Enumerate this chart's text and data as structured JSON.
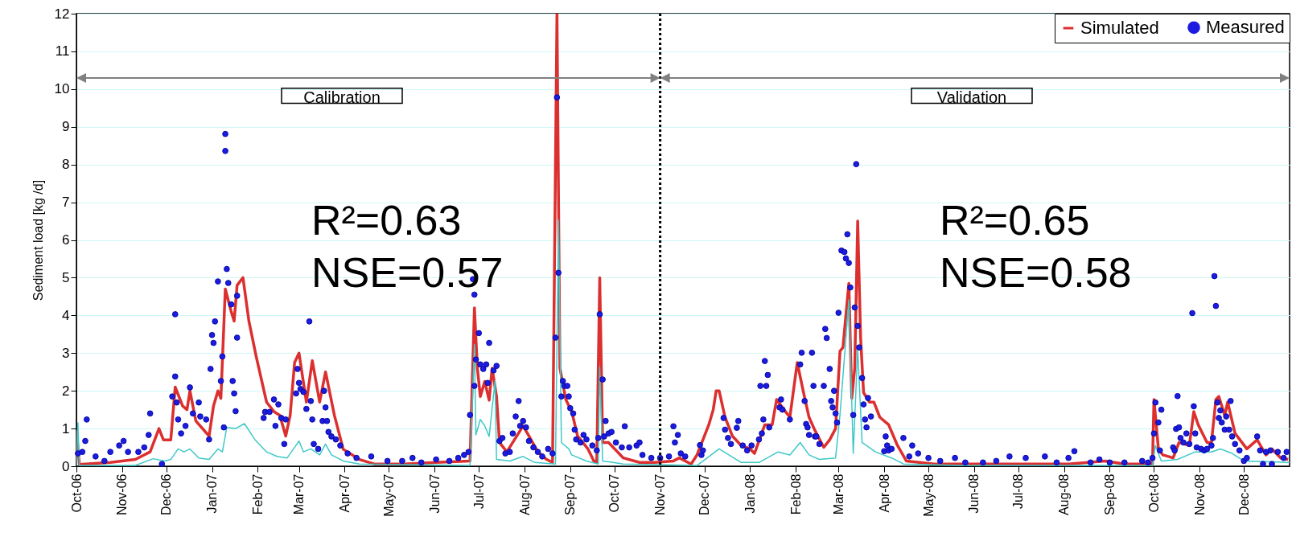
{
  "chart_data": {
    "type": "line",
    "ylabel": "Sediment load [kg /d]",
    "legend": "top right",
    "grid": "y",
    "xlim": [
      "2006-10-01",
      "2009-01-01"
    ],
    "ylim": [
      0,
      12
    ],
    "yticks": [
      0,
      1,
      2,
      3,
      4,
      5,
      6,
      7,
      8,
      9,
      10,
      11,
      12
    ],
    "xticks": [
      {
        "value": "2006-10-01",
        "label": "Oct-06"
      },
      {
        "value": "2006-11-01",
        "label": "Nov-06"
      },
      {
        "value": "2006-12-01",
        "label": "Dec-06"
      },
      {
        "value": "2007-01-01",
        "label": "Jan-07"
      },
      {
        "value": "2007-02-01",
        "label": "Feb-07"
      },
      {
        "value": "2007-03-01",
        "label": "Mar-07"
      },
      {
        "value": "2007-04-01",
        "label": "Apr-07"
      },
      {
        "value": "2007-05-01",
        "label": "May-07"
      },
      {
        "value": "2007-06-01",
        "label": "Jun-07"
      },
      {
        "value": "2007-07-01",
        "label": "Jul-07"
      },
      {
        "value": "2007-08-01",
        "label": "Aug-07"
      },
      {
        "value": "2007-09-01",
        "label": "Sep-07"
      },
      {
        "value": "2007-10-01",
        "label": "Oct-07"
      },
      {
        "value": "2007-11-01",
        "label": "Nov-07"
      },
      {
        "value": "2007-12-01",
        "label": "Dec-07"
      },
      {
        "value": "2008-01-01",
        "label": "Jan-08"
      },
      {
        "value": "2008-02-01",
        "label": "Feb-08"
      },
      {
        "value": "2008-03-01",
        "label": "Mar-08"
      },
      {
        "value": "2008-04-01",
        "label": "Apr-08"
      },
      {
        "value": "2008-05-01",
        "label": "May-08"
      },
      {
        "value": "2008-06-01",
        "label": "Jun-08"
      },
      {
        "value": "2008-07-01",
        "label": "Jul-08"
      },
      {
        "value": "2008-08-01",
        "label": "Aug-08"
      },
      {
        "value": "2008-09-01",
        "label": "Sep-08"
      },
      {
        "value": "2008-10-01",
        "label": "Oct-08"
      },
      {
        "value": "2008-11-01",
        "label": "Nov-08"
      },
      {
        "value": "2008-12-01",
        "label": "Dec-08"
      }
    ],
    "annotations": [
      "Calibration",
      "Validation",
      "R²=0.63",
      "NSE=0.57",
      "R²=0.65",
      "NSE=0.58"
    ],
    "ref_lines": [
      {
        "axis": "x",
        "value": "2007-11-01",
        "line_style": "dotted",
        "color": "#000000"
      }
    ],
    "series": [
      {
        "name": "Simulated",
        "type": "line",
        "color": "#dc2f2f",
        "x": [
          "2006-10-01",
          "2006-10-03",
          "2006-10-24",
          "2006-11-10",
          "2006-11-20",
          "2006-11-26",
          "2006-11-29",
          "2006-12-04",
          "2006-12-07",
          "2006-12-12",
          "2006-12-15",
          "2006-12-17",
          "2006-12-21",
          "2006-12-30",
          "2007-01-02",
          "2007-01-05",
          "2007-01-07",
          "2007-01-10",
          "2007-01-14",
          "2007-01-16",
          "2007-01-18",
          "2007-01-22",
          "2007-01-26",
          "2007-01-31",
          "2007-02-07",
          "2007-02-12",
          "2007-02-16",
          "2007-02-20",
          "2007-02-23",
          "2007-02-26",
          "2007-03-01",
          "2007-03-06",
          "2007-03-10",
          "2007-03-15",
          "2007-03-19",
          "2007-03-25",
          "2007-03-31",
          "2007-04-11",
          "2007-04-21",
          "2007-05-12",
          "2007-06-02",
          "2007-06-25",
          "2007-06-28",
          "2007-06-30",
          "2007-07-02",
          "2007-07-05",
          "2007-07-08",
          "2007-07-10",
          "2007-07-13",
          "2007-07-15",
          "2007-07-20",
          "2007-07-24",
          "2007-07-31",
          "2007-08-04",
          "2007-08-10",
          "2007-08-16",
          "2007-08-20",
          "2007-08-23",
          "2007-08-25",
          "2007-08-29",
          "2007-09-02",
          "2007-09-06",
          "2007-09-13",
          "2007-09-17",
          "2007-09-19",
          "2007-09-21",
          "2007-09-23",
          "2007-09-27",
          "2007-10-07",
          "2007-10-18",
          "2007-10-28",
          "2007-11-10",
          "2007-11-14",
          "2007-11-22",
          "2007-11-26",
          "2007-12-04",
          "2007-12-07",
          "2007-12-09",
          "2007-12-11",
          "2007-12-15",
          "2007-12-20",
          "2007-12-26",
          "2008-01-01",
          "2008-01-04",
          "2008-01-11",
          "2008-01-16",
          "2008-01-19",
          "2008-01-24",
          "2008-01-28",
          "2008-02-02",
          "2008-02-06",
          "2008-02-10",
          "2008-02-14",
          "2008-02-20",
          "2008-02-24",
          "2008-02-28",
          "2008-03-02",
          "2008-03-04",
          "2008-03-08",
          "2008-03-10",
          "2008-03-12",
          "2008-03-14",
          "2008-03-16",
          "2008-03-18",
          "2008-03-22",
          "2008-03-25",
          "2008-03-29",
          "2008-04-04",
          "2008-04-10",
          "2008-04-16",
          "2008-05-05",
          "2008-06-16",
          "2008-08-04",
          "2008-08-29",
          "2008-09-11",
          "2008-09-30",
          "2008-10-01",
          "2008-10-04",
          "2008-10-07",
          "2008-10-14",
          "2008-10-18",
          "2008-10-25",
          "2008-10-28",
          "2008-10-31",
          "2008-11-06",
          "2008-11-09",
          "2008-11-12",
          "2008-11-14",
          "2008-11-18",
          "2008-11-20",
          "2008-11-25",
          "2008-12-03",
          "2008-12-10",
          "2008-12-16",
          "2008-12-20",
          "2008-12-26",
          "2008-12-31"
        ],
        "values": [
          0.95,
          0.05,
          0.1,
          0.18,
          0.38,
          1.0,
          0.7,
          0.7,
          2.1,
          1.6,
          1.5,
          2.0,
          1.2,
          0.8,
          1.6,
          2.0,
          1.8,
          4.7,
          4.1,
          3.85,
          4.8,
          5.0,
          3.85,
          2.9,
          1.7,
          1.45,
          1.35,
          0.8,
          1.35,
          2.75,
          3.0,
          1.7,
          2.8,
          1.7,
          2.5,
          1.35,
          0.45,
          0.18,
          0.06,
          0.06,
          0.1,
          0.14,
          4.2,
          2.6,
          1.85,
          2.25,
          1.75,
          2.6,
          1.85,
          0.63,
          0.38,
          0.63,
          1.07,
          0.8,
          0.38,
          0.18,
          0.1,
          12,
          2.6,
          1.77,
          1.45,
          0.8,
          0.46,
          0.14,
          0.1,
          5.0,
          0.63,
          0.63,
          0.22,
          0.1,
          0.1,
          0.14,
          0.22,
          0.06,
          0.3,
          1.1,
          1.5,
          2.0,
          2.0,
          1.3,
          0.8,
          0.55,
          0.46,
          0.34,
          1.1,
          1.1,
          1.77,
          1.5,
          1.3,
          2.75,
          2.0,
          1.3,
          0.95,
          0.5,
          0.7,
          1.0,
          3.05,
          3.15,
          4.85,
          1.8,
          2.6,
          6.5,
          3.4,
          1.95,
          1.7,
          1.7,
          1.3,
          1.1,
          0.55,
          0.14,
          0.06,
          0.06,
          0.06,
          0.14,
          0.06,
          0.06,
          1.77,
          0.46,
          0.3,
          0.22,
          0.63,
          0.55,
          1.45,
          1.1,
          0.63,
          0.63,
          1.77,
          1.85,
          1.35,
          1.7,
          0.87,
          0.46,
          0.7,
          0.3,
          0.46,
          0.22,
          0.18
        ]
      },
      {
        "type": "line",
        "color": "#40c8c8",
        "x": [
          "2006-10-01",
          "2006-10-02",
          "2006-10-03",
          "2006-11-10",
          "2006-11-22",
          "2006-11-30",
          "2006-12-04",
          "2006-12-09",
          "2006-12-13",
          "2006-12-17",
          "2006-12-23",
          "2006-12-30",
          "2007-01-05",
          "2007-01-08",
          "2007-01-11",
          "2007-01-17",
          "2007-01-23",
          "2007-01-30",
          "2007-02-07",
          "2007-02-14",
          "2007-02-21",
          "2007-03-01",
          "2007-03-04",
          "2007-03-09",
          "2007-03-15",
          "2007-03-19",
          "2007-03-23",
          "2007-03-31",
          "2007-04-11",
          "2007-06-25",
          "2007-06-28",
          "2007-06-29",
          "2007-07-02",
          "2007-07-05",
          "2007-07-08",
          "2007-07-12",
          "2007-07-13",
          "2007-07-22",
          "2007-07-31",
          "2007-08-08",
          "2007-08-22",
          "2007-08-24",
          "2007-08-26",
          "2007-08-31",
          "2007-09-02",
          "2007-09-12",
          "2007-09-20",
          "2007-09-21",
          "2007-09-23",
          "2007-10-07",
          "2007-11-26",
          "2007-12-11",
          "2007-12-26",
          "2008-01-07",
          "2008-01-20",
          "2008-01-28",
          "2008-02-04",
          "2008-02-10",
          "2008-02-17",
          "2008-02-28",
          "2008-03-02",
          "2008-03-08",
          "2008-03-11",
          "2008-03-14",
          "2008-03-17",
          "2008-03-26",
          "2008-04-06",
          "2008-04-14",
          "2008-05-23",
          "2008-09-30",
          "2008-10-02",
          "2008-10-06",
          "2008-10-17",
          "2008-10-29",
          "2008-11-09",
          "2008-11-15",
          "2008-11-23",
          "2008-12-01",
          "2009-01-01"
        ],
        "values": [
          0.02,
          1.15,
          0.02,
          0.02,
          0.2,
          0.14,
          0.18,
          0.46,
          0.38,
          0.46,
          0.22,
          0.18,
          0.46,
          0.38,
          1.03,
          1.0,
          1.13,
          0.71,
          0.38,
          0.26,
          0.22,
          0.67,
          0.38,
          0.46,
          0.3,
          0.59,
          0.3,
          0.14,
          0.06,
          0.02,
          3.23,
          0.83,
          1.24,
          1.07,
          0.79,
          2.26,
          0.18,
          0.14,
          0.26,
          0.1,
          0.06,
          6.53,
          0.63,
          0.46,
          0.3,
          0.14,
          0.06,
          2.62,
          0.14,
          0.06,
          0.02,
          0.46,
          0.1,
          0.1,
          0.38,
          0.3,
          0.63,
          0.3,
          0.18,
          0.22,
          1.36,
          4.41,
          0.34,
          3.11,
          0.63,
          0.38,
          0.22,
          0.06,
          0.02,
          0.02,
          0.55,
          0.14,
          0.18,
          0.38,
          0.38,
          0.46,
          0.34,
          0.14,
          0.1
        ]
      },
      {
        "name": "Measured",
        "type": "scatter",
        "marker": "circle",
        "color": "#1c1ce0",
        "x": [
          "2006-10-02",
          "2006-10-05",
          "2006-10-07",
          "2006-10-08",
          "2006-10-14",
          "2006-10-20",
          "2006-10-24",
          "2006-10-30",
          "2006-11-02",
          "2006-11-05",
          "2006-11-12",
          "2006-11-16",
          "2006-11-19",
          "2006-11-20",
          "2006-11-28",
          "2006-12-05",
          "2006-12-07",
          "2006-12-07",
          "2006-12-08",
          "2006-12-09",
          "2006-12-11",
          "2006-12-14",
          "2006-12-17",
          "2006-12-19",
          "2006-12-23",
          "2006-12-24",
          "2006-12-28",
          "2006-12-30",
          "2006-12-31",
          "2007-01-01",
          "2007-01-02",
          "2007-01-03",
          "2007-01-05",
          "2007-01-07",
          "2007-01-08",
          "2007-01-09",
          "2007-01-10",
          "2007-01-10",
          "2007-01-11",
          "2007-01-12",
          "2007-01-14",
          "2007-01-15",
          "2007-01-16",
          "2007-01-17",
          "2007-01-18",
          "2007-01-18",
          "2007-02-05",
          "2007-02-06",
          "2007-02-09",
          "2007-02-12",
          "2007-02-13",
          "2007-02-15",
          "2007-02-17",
          "2007-02-19",
          "2007-02-20",
          "2007-02-27",
          "2007-02-28",
          "2007-03-01",
          "2007-03-02",
          "2007-03-04",
          "2007-03-06",
          "2007-03-08",
          "2007-03-09",
          "2007-03-10",
          "2007-03-11",
          "2007-03-14",
          "2007-03-17",
          "2007-03-18",
          "2007-03-19",
          "2007-03-20",
          "2007-03-21",
          "2007-03-23",
          "2007-03-26",
          "2007-03-29",
          "2007-04-03",
          "2007-04-09",
          "2007-04-19",
          "2007-04-30",
          "2007-05-10",
          "2007-05-17",
          "2007-05-23",
          "2007-06-02",
          "2007-06-11",
          "2007-06-17",
          "2007-06-21",
          "2007-06-24",
          "2007-06-25",
          "2007-06-27",
          "2007-06-28",
          "2007-06-28",
          "2007-06-29",
          "2007-07-01",
          "2007-07-02",
          "2007-07-04",
          "2007-07-06",
          "2007-07-07",
          "2007-07-08",
          "2007-07-11",
          "2007-07-13",
          "2007-07-15",
          "2007-07-17",
          "2007-07-19",
          "2007-07-22",
          "2007-07-24",
          "2007-07-26",
          "2007-07-28",
          "2007-07-29",
          "2007-07-31",
          "2007-08-02",
          "2007-08-04",
          "2007-08-07",
          "2007-08-10",
          "2007-08-13",
          "2007-08-17",
          "2007-08-20",
          "2007-08-22",
          "2007-08-23",
          "2007-08-24",
          "2007-08-26",
          "2007-08-27",
          "2007-08-28",
          "2007-08-30",
          "2007-08-31",
          "2007-09-01",
          "2007-09-03",
          "2007-09-04",
          "2007-09-05",
          "2007-09-08",
          "2007-09-10",
          "2007-09-12",
          "2007-09-16",
          "2007-09-19",
          "2007-09-20",
          "2007-09-21",
          "2007-09-23",
          "2007-09-24",
          "2007-09-25",
          "2007-09-27",
          "2007-09-29",
          "2007-10-02",
          "2007-10-06",
          "2007-10-08",
          "2007-10-11",
          "2007-10-16",
          "2007-10-18",
          "2007-10-20",
          "2007-10-26",
          "2007-11-01",
          "2007-11-07",
          "2007-11-10",
          "2007-11-11",
          "2007-11-13",
          "2007-11-15",
          "2007-11-18",
          "2007-11-28",
          "2007-11-29",
          "2007-11-30",
          "2007-12-14",
          "2007-12-15",
          "2007-12-17",
          "2007-12-19",
          "2007-12-23",
          "2007-12-24",
          "2007-12-27",
          "2007-12-30",
          "2008-01-02",
          "2008-01-07",
          "2008-01-08",
          "2008-01-09",
          "2008-01-10",
          "2008-01-11",
          "2008-01-12",
          "2008-01-13",
          "2008-01-14",
          "2008-01-21",
          "2008-01-22",
          "2008-01-23",
          "2008-01-28",
          "2008-02-04",
          "2008-02-05",
          "2008-02-07",
          "2008-02-08",
          "2008-02-09",
          "2008-02-10",
          "2008-02-12",
          "2008-02-13",
          "2008-02-14",
          "2008-02-15",
          "2008-02-17",
          "2008-02-20",
          "2008-02-21",
          "2008-02-22",
          "2008-02-24",
          "2008-02-25",
          "2008-02-26",
          "2008-02-27",
          "2008-02-28",
          "2008-02-29",
          "2008-03-01",
          "2008-03-03",
          "2008-03-05",
          "2008-03-06",
          "2008-03-07",
          "2008-03-08",
          "2008-03-09",
          "2008-03-11",
          "2008-03-12",
          "2008-03-13",
          "2008-03-14",
          "2008-03-15",
          "2008-03-17",
          "2008-03-18",
          "2008-03-19",
          "2008-03-20",
          "2008-03-21",
          "2008-03-23",
          "2008-04-01",
          "2008-04-02",
          "2008-04-03",
          "2008-04-04",
          "2008-04-06",
          "2008-04-14",
          "2008-04-18",
          "2008-04-20",
          "2008-04-24",
          "2008-05-01",
          "2008-05-09",
          "2008-05-19",
          "2008-05-26",
          "2008-06-07",
          "2008-06-16",
          "2008-06-25",
          "2008-07-06",
          "2008-07-19",
          "2008-07-27",
          "2008-08-04",
          "2008-08-08",
          "2008-08-19",
          "2008-08-25",
          "2008-09-01",
          "2008-09-11",
          "2008-09-23",
          "2008-09-27",
          "2008-09-30",
          "2008-10-01",
          "2008-10-02",
          "2008-10-04",
          "2008-10-05",
          "2008-10-06",
          "2008-10-14",
          "2008-10-15",
          "2008-10-16",
          "2008-10-17",
          "2008-10-18",
          "2008-10-19",
          "2008-10-21",
          "2008-10-23",
          "2008-10-25",
          "2008-10-27",
          "2008-10-28",
          "2008-10-29",
          "2008-10-30",
          "2008-11-02",
          "2008-11-04",
          "2008-11-06",
          "2008-11-09",
          "2008-11-10",
          "2008-11-11",
          "2008-11-12",
          "2008-11-13",
          "2008-11-14",
          "2008-11-15",
          "2008-11-16",
          "2008-11-18",
          "2008-11-19",
          "2008-11-21",
          "2008-11-22",
          "2008-11-23",
          "2008-11-25",
          "2008-11-28",
          "2008-12-01",
          "2008-12-03",
          "2008-12-10",
          "2008-12-12",
          "2008-12-14",
          "2008-12-16",
          "2008-12-19",
          "2008-12-20",
          "2008-12-24",
          "2008-12-28",
          "2008-12-30"
        ],
        "values": [
          0.34,
          0.38,
          0.67,
          1.24,
          0.26,
          0.14,
          0.38,
          0.55,
          0.67,
          0.38,
          0.38,
          0.5,
          0.83,
          1.4,
          0.06,
          1.85,
          4.03,
          2.38,
          1.69,
          1.24,
          0.87,
          1.07,
          2.09,
          1.4,
          1.69,
          1.32,
          1.24,
          0.71,
          2.58,
          3.48,
          3.27,
          3.84,
          4.9,
          2.26,
          2.91,
          1.03,
          8.36,
          8.81,
          5.23,
          4.86,
          4.29,
          2.26,
          1.93,
          1.46,
          4.52,
          3.41,
          1.28,
          1.44,
          1.44,
          1.77,
          1.07,
          1.64,
          1.28,
          0.59,
          1.24,
          1.93,
          2.58,
          2.21,
          2.05,
          1.97,
          1.52,
          3.84,
          1.73,
          1.24,
          0.59,
          0.46,
          1.2,
          2.0,
          1.56,
          1.2,
          0.91,
          0.79,
          0.71,
          0.55,
          0.34,
          0.22,
          0.26,
          0.14,
          0.14,
          0.22,
          0.1,
          0.18,
          0.14,
          0.22,
          0.3,
          0.38,
          1.36,
          4.96,
          4.55,
          2.13,
          2.83,
          3.53,
          2.7,
          2.58,
          2.7,
          2.21,
          3.27,
          2.54,
          2.66,
          0.67,
          0.75,
          0.34,
          0.38,
          0.87,
          1.32,
          1.73,
          1.07,
          1.2,
          1.03,
          0.67,
          0.5,
          0.38,
          0.26,
          0.46,
          0.34,
          3.41,
          9.78,
          5.13,
          1.85,
          2.26,
          2.13,
          2.13,
          1.85,
          1.54,
          1.4,
          0.97,
          0.71,
          0.63,
          0.83,
          0.71,
          0.55,
          0.42,
          0.75,
          4.03,
          2.3,
          0.79,
          1.2,
          0.87,
          0.91,
          0.63,
          0.5,
          1.06,
          0.5,
          0.55,
          0.63,
          0.3,
          0.22,
          0.22,
          0.26,
          1.06,
          0.63,
          0.83,
          0.34,
          0.26,
          0.56,
          0.3,
          0.42,
          1.28,
          0.97,
          0.75,
          0.59,
          1.02,
          1.2,
          0.55,
          0.42,
          0.55,
          0.71,
          2.13,
          0.87,
          1.24,
          2.79,
          2.13,
          2.42,
          1.03,
          1.56,
          1.77,
          1.5,
          1.24,
          2.7,
          3.01,
          1.73,
          1.12,
          1.03,
          0.83,
          3.01,
          2.13,
          0.79,
          0.79,
          0.59,
          2.13,
          3.64,
          3.4,
          2.58,
          1.73,
          1.56,
          2.0,
          1.4,
          1.16,
          4.07,
          5.72,
          5.68,
          5.51,
          6.15,
          5.39,
          4.74,
          1.36,
          4.21,
          8.01,
          3.72,
          3.15,
          2.34,
          1.64,
          1.24,
          1.03,
          1.81,
          1.32,
          0.4,
          0.79,
          0.55,
          0.42,
          0.46,
          0.75,
          0.26,
          0.55,
          0.34,
          0.22,
          0.14,
          0.22,
          0.1,
          0.1,
          0.14,
          0.26,
          0.22,
          0.26,
          0.1,
          0.22,
          0.4,
          0.1,
          0.18,
          0.1,
          0.1,
          0.14,
          0.1,
          0.22,
          0.87,
          1.69,
          1.16,
          0.42,
          1.5,
          0.5,
          0.42,
          0.99,
          1.86,
          1.03,
          0.75,
          0.63,
          0.87,
          0.59,
          4.06,
          1.59,
          0.87,
          0.5,
          0.46,
          0.42,
          0.46,
          0.55,
          0.75,
          5.04,
          4.25,
          1.69,
          1.28,
          1.48,
          1.16,
          0.97,
          1.32,
          0.97,
          1.73,
          0.79,
          0.59,
          0.42,
          0.14,
          0.22,
          0.79,
          0.42,
          0.06,
          0.38,
          0.42,
          0.06,
          0.38,
          0.22,
          0.38
        ]
      }
    ]
  }
}
